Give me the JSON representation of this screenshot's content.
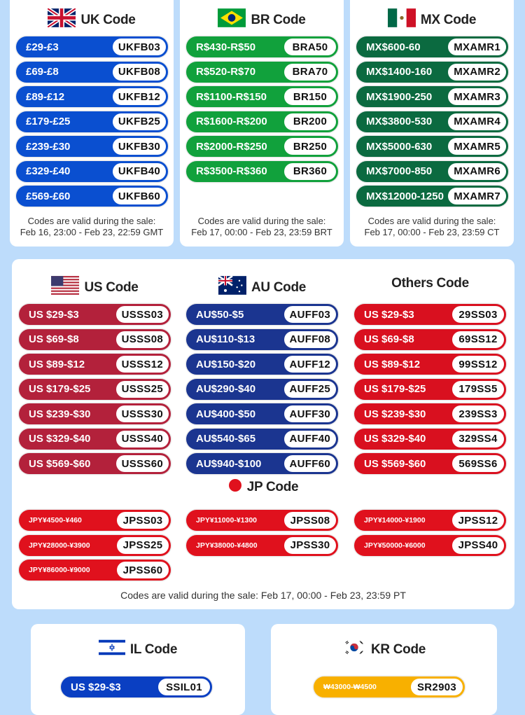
{
  "colors": {
    "background": "#bddcfb",
    "uk": "#0a4fd0",
    "br": "#11a13c",
    "mx": "#0b6a40",
    "us": "#b3213b",
    "au": "#1b3590",
    "others": "#d9101f",
    "jp": "#e0111d",
    "il": "#0a3fc2",
    "kr": "#f8b000"
  },
  "uk": {
    "title": "UK Code",
    "flag": "uk-flag-icon",
    "rows": [
      {
        "amount": "£29-£3",
        "code": "UKFB03"
      },
      {
        "amount": "£69-£8",
        "code": "UKFB08"
      },
      {
        "amount": "£89-£12",
        "code": "UKFB12"
      },
      {
        "amount": "£179-£25",
        "code": "UKFB25"
      },
      {
        "amount": "£239-£30",
        "code": "UKFB30"
      },
      {
        "amount": "£329-£40",
        "code": "UKFB40"
      },
      {
        "amount": "£569-£60",
        "code": "UKFB60"
      }
    ],
    "valid_line1": "Codes are valid during the sale:",
    "valid_line2": "Feb 16, 23:00 - Feb 23, 22:59 GMT"
  },
  "br": {
    "title": "BR Code",
    "flag": "brazil-flag-icon",
    "rows": [
      {
        "amount": "R$430-R$50",
        "code": "BRA50"
      },
      {
        "amount": "R$520-R$70",
        "code": "BRA70"
      },
      {
        "amount": "R$1100-R$150",
        "code": "BR150"
      },
      {
        "amount": "R$1600-R$200",
        "code": "BR200"
      },
      {
        "amount": "R$2000-R$250",
        "code": "BR250"
      },
      {
        "amount": "R$3500-R$360",
        "code": "BR360"
      }
    ],
    "valid_line1": "Codes are valid during the sale:",
    "valid_line2": "Feb 17, 00:00 - Feb 23, 23:59 BRT"
  },
  "mx": {
    "title": "MX Code",
    "flag": "mexico-flag-icon",
    "rows": [
      {
        "amount": "MX$600-60",
        "code": "MXAMR1"
      },
      {
        "amount": "MX$1400-160",
        "code": "MXAMR2"
      },
      {
        "amount": "MX$1900-250",
        "code": "MXAMR3"
      },
      {
        "amount": "MX$3800-530",
        "code": "MXAMR4"
      },
      {
        "amount": "MX$5000-630",
        "code": "MXAMR5"
      },
      {
        "amount": "MX$7000-850",
        "code": "MXAMR6"
      },
      {
        "amount": "MX$12000-1250",
        "code": "MXAMR7"
      }
    ],
    "valid_line1": "Codes are valid during the sale:",
    "valid_line2": "Feb 17, 00:00 - Feb 23, 23:59  CT"
  },
  "us": {
    "title": "US Code",
    "flag": "us-flag-icon",
    "rows": [
      {
        "amount": "US $29-$3",
        "code": "USSS03"
      },
      {
        "amount": "US $69-$8",
        "code": "USSS08"
      },
      {
        "amount": "US $89-$12",
        "code": "USSS12"
      },
      {
        "amount": "US $179-$25",
        "code": "USSS25"
      },
      {
        "amount": "US $239-$30",
        "code": "USSS30"
      },
      {
        "amount": "US $329-$40",
        "code": "USSS40"
      },
      {
        "amount": "US $569-$60",
        "code": "USSS60"
      }
    ]
  },
  "au": {
    "title": "AU Code",
    "flag": "australia-flag-icon",
    "rows": [
      {
        "amount": "AU$50-$5",
        "code": "AUFF03"
      },
      {
        "amount": "AU$110-$13",
        "code": "AUFF08"
      },
      {
        "amount": "AU$150-$20",
        "code": "AUFF12"
      },
      {
        "amount": "AU$290-$40",
        "code": "AUFF25"
      },
      {
        "amount": "AU$400-$50",
        "code": "AUFF30"
      },
      {
        "amount": "AU$540-$65",
        "code": "AUFF40"
      },
      {
        "amount": "AU$940-$100",
        "code": "AUFF60"
      }
    ]
  },
  "others": {
    "title": "Others Code",
    "rows": [
      {
        "amount": "US $29-$3",
        "code": "29SS03"
      },
      {
        "amount": "US $69-$8",
        "code": "69SS12"
      },
      {
        "amount": "US $89-$12",
        "code": "99SS12"
      },
      {
        "amount": "US $179-$25",
        "code": "179SS5"
      },
      {
        "amount": "US $239-$30",
        "code": "239SS3"
      },
      {
        "amount": "US $329-$40",
        "code": "329SS4"
      },
      {
        "amount": "US $569-$60",
        "code": "569SS6"
      }
    ]
  },
  "jp": {
    "title": "JP Code",
    "flag": "japan-flag-icon",
    "rows": [
      {
        "amount": "JPY¥4500-¥460",
        "code": "JPSS03"
      },
      {
        "amount": "JPY¥11000-¥1300",
        "code": "JPSS08"
      },
      {
        "amount": "JPY¥14000-¥1900",
        "code": "JPSS12"
      },
      {
        "amount": "JPY¥28000-¥3900",
        "code": "JPSS25"
      },
      {
        "amount": "JPY¥38000-¥4800",
        "code": "JPSS30"
      },
      {
        "amount": "JPY¥50000-¥6000",
        "code": "JPSS40"
      },
      {
        "amount": "JPY¥86000-¥9000",
        "code": "JPSS60"
      }
    ]
  },
  "middle_valid": "Codes are valid during the sale: Feb 17, 00:00 - Feb 23, 23:59 PT",
  "il": {
    "title": "IL Code",
    "flag": "israel-flag-icon",
    "rows": [
      {
        "amount": "US $29-$3",
        "code": "SSIL01"
      }
    ]
  },
  "kr": {
    "title": "KR Code",
    "flag": "korea-flag-icon",
    "rows": [
      {
        "amount": "₩43000-₩4500",
        "code": "SR2903"
      }
    ]
  }
}
